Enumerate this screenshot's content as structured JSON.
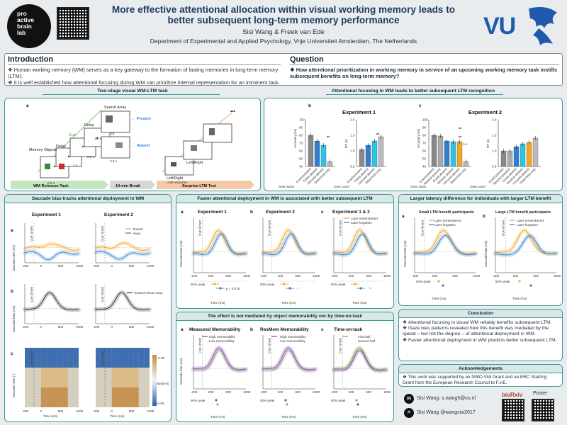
{
  "header": {
    "title_line1": "More effective attentional allocation within visual working memory leads to",
    "title_line2": "better subsequent long-term memory performance",
    "authors": "Sisi Wang & Freek van Ede",
    "affiliation": "Department of Experimental and Applied Psychology, Vrije Universiteit Amsterdam, The Netherlands",
    "lab_logo": [
      "pro",
      "active",
      "brain",
      "lab"
    ],
    "vu_logo": "VU"
  },
  "intro": {
    "heading": "Introduction",
    "bullets": [
      "Human working memory (WM) serves as a key gateway to the formation of lasting memories in long-term memory (LTM).",
      "It is well established how attentional focusing during WM can prioritize internal representation for an imminent task."
    ]
  },
  "question": {
    "heading": "Question",
    "text": "How attentional prioritization in working memory in service of an upcoming working memory task instills subsequent benefits on long-term memory?"
  },
  "task_panel": {
    "title": "Two-stage visual WM-LTM task",
    "label": "a",
    "labels": {
      "memory_objects": "Memory Objects",
      "delay1": "Delay",
      "cue": "Cue",
      "delay2": "Delay",
      "search_array": "Search Array",
      "or": "or",
      "present": "Present",
      "absent": "Absent",
      "t1": "0.5 s",
      "t2": "1 s",
      "t3": "0.5 s",
      "t4": "1.5 s",
      "t5": "0.5 s",
      "left_right": "Left/Right",
      "left_right2": "Left/Right",
      "until": "Until response",
      "dots": "•••"
    },
    "stages": [
      "WM Retrocue Task",
      "10-min Break",
      "Surprise LTM Test"
    ]
  },
  "focus_panel": {
    "title": "Attentional focusing in WM leads to better subsequent LTM recognition",
    "exp1": {
      "label": "b",
      "title": "Experiment 1",
      "ylabel_acc": "Accuracy (%)",
      "ylabel_rt": "RT (s)",
      "acc_ticks": [
        "100",
        "90",
        "80",
        "70",
        "60",
        "50",
        "40"
      ],
      "rt_ticks": [
        "2.0",
        "1.5",
        "1.0",
        "0.5"
      ],
      "categories": [
        "Cued-present",
        "Cued-absent",
        "Uncued-absent",
        "Searched-only"
      ],
      "footer": [
        "Seen twice",
        "Seen once"
      ],
      "sig": "**"
    },
    "exp2": {
      "label": "c",
      "title": "Experiment 2",
      "ylabel_acc": "Accuracy (%)",
      "ylabel_rt": "RT (s)",
      "acc_ticks": [
        "100",
        "90",
        "80",
        "70",
        "60",
        "50",
        "40"
      ],
      "rt_ticks": [
        "2.0",
        "1.5",
        "1.0",
        "0.5"
      ],
      "categories": [
        "Cued-present",
        "Neutral-present",
        "Cued-absent",
        "Neutral-absent",
        "Uncued-absent",
        "Searched-only"
      ],
      "footer": [
        "Seen twice",
        "Seen once"
      ],
      "sig": [
        "**",
        "**",
        "n.s"
      ]
    }
  },
  "saccade_panel": {
    "title": "Saccade bias tracks attentional deployment in WM",
    "col1": "Experiment 1",
    "col2": "Experiment 2",
    "row_labels": [
      "a",
      "b",
      "c"
    ],
    "ylabels": [
      "Saccade rate (Hz)",
      "Saccade bias (Hz)",
      "Saccade size (°)"
    ],
    "legend_a": [
      "Toward",
      "Away"
    ],
    "legend_b": "Toward minus Away",
    "colorbar": [
      "0.05",
      "ΔBias(Hz)",
      "-0.05"
    ],
    "cue_onset": "Cue Onset",
    "xticks": [
      "-200",
      "0",
      "500",
      "1000"
    ],
    "xlabel": "Time (ms)"
  },
  "faster_panel": {
    "title": "Faster attentional deployment in WM is associated with better subsequent LTM",
    "subs": [
      {
        "label": "a",
        "title": "Experiment 1",
        "stat": "p = 0.075"
      },
      {
        "label": "b",
        "title": "Experiment 2",
        "stat": "*"
      },
      {
        "label": "c",
        "title": "Experiment 1 & 2",
        "stat": "**"
      }
    ],
    "legend": [
      "Later remembered",
      "Later forgotten"
    ],
    "ylabel": "Saccade bias (Hz)",
    "cue_onset": "Cue Onset",
    "peak": "50% peak",
    "xticks": [
      "-200",
      "0",
      "200",
      "400",
      "600",
      "800",
      "1000"
    ],
    "xlabel": "Time (ms)"
  },
  "mediation_panel": {
    "title": "The effect is not mediated by object memorability nor by time-on-task",
    "subs": [
      {
        "label": "a",
        "title": "Measured Memorability",
        "legend": [
          "High memorability",
          "Low memorability"
        ]
      },
      {
        "label": "b",
        "title": "ResMem Memorability",
        "legend": [
          "High memorability",
          "Low memorability"
        ]
      },
      {
        "label": "c",
        "title": "Time-on-task",
        "legend": [
          "First half",
          "Second half"
        ]
      }
    ],
    "ylabel": "Saccade bias (Hz)",
    "cue_onset": "Cue Onset",
    "peak": "50% peak",
    "xticks": [
      "-200",
      "0",
      "200",
      "400",
      "600",
      "800",
      "1000"
    ],
    "xlabel": "Time (ms)"
  },
  "latency_panel": {
    "title": "Larger latency difference for individuals with larger LTM benefit",
    "subs": [
      {
        "label": "a",
        "title": "Small LTM benefit participants"
      },
      {
        "label": "b",
        "title": "Large LTM benefit participants"
      }
    ],
    "legend": [
      "Later remembered",
      "Later forgotten"
    ],
    "ylabel": "Saccade bias (Hz)",
    "peak": "50% peak",
    "xlabel": "Time (ms)"
  },
  "conclusion": {
    "title": "Conclusion",
    "bullets": [
      "Attentional focusing in visual WM reliably benefits subsequent LTM.",
      "Gaze bias patterns revealed how this benefit was mediated by the speed – but not the degree – of attentional deployment in WM.",
      "Faster attentional deployment in WM predicts better subsequent LTM."
    ]
  },
  "ack": {
    "title": "Acknowledgements",
    "text": "This work was supported by an NWO Vidi Grant and an ERC Starting Grant from the European Research Council to F.v.E."
  },
  "contact": {
    "email": "Sisi Wang: s.wang5@vu.nl",
    "twitter": "Sisi Wang @wangsisi2017",
    "biorxiv": "bioRxiv",
    "poster": "Poster"
  },
  "colors": {
    "teal": "#3a9a95",
    "orange": "#f5a623",
    "blue": "#2f7fd1",
    "cyan": "#2ec4e6",
    "gray": "#888888",
    "purple": "#8e44ad",
    "green": "#6abf40"
  }
}
